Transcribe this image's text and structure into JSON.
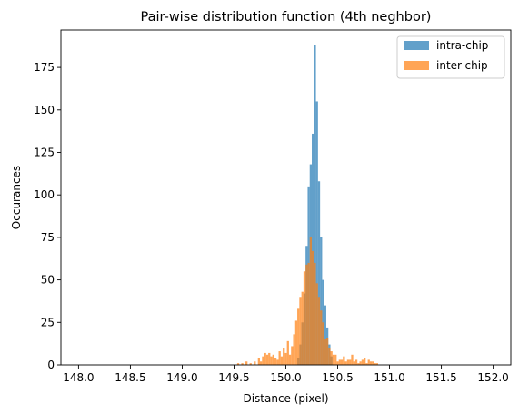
{
  "chart_data": {
    "type": "bar",
    "title": "Pair-wise distribution function (4th neghbor)",
    "xlabel": "Distance (pixel)",
    "ylabel": "Occurances",
    "xlim": [
      147.83,
      152.17
    ],
    "ylim": [
      0,
      197
    ],
    "x_ticks": [
      "148.0",
      "148.5",
      "149.0",
      "149.5",
      "150.0",
      "150.5",
      "151.0",
      "151.5",
      "152.0"
    ],
    "y_ticks": [
      "0",
      "25",
      "50",
      "75",
      "100",
      "125",
      "150",
      "175"
    ],
    "grid": false,
    "legend_position": "top-right",
    "bin_width": 0.02,
    "series": [
      {
        "name": "intra-chip",
        "color": "#1f77b4",
        "opacity": 0.7,
        "x": [
          150.12,
          150.14,
          150.16,
          150.18,
          150.2,
          150.22,
          150.24,
          150.26,
          150.28,
          150.3,
          150.32,
          150.34,
          150.36,
          150.38,
          150.4,
          150.42,
          150.44
        ],
        "values": [
          4,
          12,
          25,
          42,
          70,
          105,
          118,
          136,
          188,
          155,
          108,
          75,
          50,
          35,
          22,
          12,
          5
        ]
      },
      {
        "name": "inter-chip",
        "color": "#ff7f0e",
        "opacity": 0.7,
        "x": [
          149.54,
          149.58,
          149.62,
          149.66,
          149.7,
          149.74,
          149.76,
          149.78,
          149.8,
          149.82,
          149.84,
          149.86,
          149.88,
          149.9,
          149.92,
          149.94,
          149.96,
          149.98,
          150.0,
          150.02,
          150.04,
          150.06,
          150.08,
          150.1,
          150.12,
          150.14,
          150.16,
          150.18,
          150.2,
          150.22,
          150.24,
          150.26,
          150.28,
          150.3,
          150.32,
          150.34,
          150.36,
          150.38,
          150.4,
          150.42,
          150.44,
          150.46,
          150.48,
          150.5,
          150.52,
          150.54,
          150.56,
          150.58,
          150.6,
          150.62,
          150.64,
          150.66,
          150.68,
          150.7,
          150.72,
          150.74,
          150.76,
          150.78,
          150.8,
          150.82,
          150.84,
          150.86,
          150.88
        ],
        "values": [
          1,
          1,
          2,
          1,
          2,
          4,
          2,
          5,
          7,
          6,
          7,
          5,
          6,
          4,
          3,
          8,
          5,
          10,
          7,
          14,
          6,
          11,
          18,
          26,
          33,
          40,
          43,
          55,
          59,
          60,
          75,
          67,
          60,
          48,
          40,
          32,
          25,
          15,
          16,
          10,
          8,
          6,
          6,
          2,
          3,
          3,
          5,
          2,
          3,
          3,
          6,
          2,
          3,
          1,
          2,
          3,
          4,
          1,
          3,
          2,
          2,
          1,
          1
        ]
      }
    ]
  }
}
